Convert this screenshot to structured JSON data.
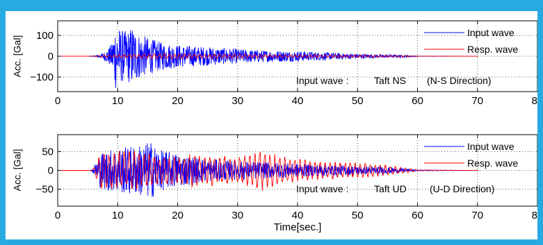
{
  "colors": {
    "border": "#29a9e1",
    "input_wave": "#0000ff",
    "resp_wave": "#ff0000"
  },
  "chart_data": [
    {
      "type": "line",
      "title": "",
      "xlabel": "",
      "ylabel": "Acc. [Gal]",
      "xlim": [
        0,
        80
      ],
      "ylim": [
        -170,
        170
      ],
      "xticks": [
        0,
        10,
        20,
        30,
        40,
        50,
        60,
        70,
        80
      ],
      "x_tick_labels": [
        "0",
        "10",
        "20",
        "30",
        "40",
        "50",
        "60",
        "70",
        "80"
      ],
      "yticks": [
        -100,
        0,
        100
      ],
      "y_tick_labels": [
        "−100",
        "0",
        "100"
      ],
      "grid": true,
      "legend_position": "top-right",
      "annotation_prefix": "Input wave :",
      "annotation_name": "Taft NS",
      "annotation_dir": "(N-S Direction)",
      "x_end": 70,
      "series": [
        {
          "name": "Input wave",
          "color": "#0000ff",
          "envelope": [
            [
              0,
              0
            ],
            [
              5,
              0
            ],
            [
              6,
              3
            ],
            [
              7,
              8
            ],
            [
              8,
              25
            ],
            [
              9,
              60
            ],
            [
              9.6,
              165
            ],
            [
              10.5,
              130
            ],
            [
              11.5,
              120
            ],
            [
              12.5,
              150
            ],
            [
              13.5,
              110
            ],
            [
              15,
              90
            ],
            [
              17,
              70
            ],
            [
              20,
              55
            ],
            [
              25,
              45
            ],
            [
              30,
              35
            ],
            [
              35,
              28
            ],
            [
              40,
              25
            ],
            [
              45,
              18
            ],
            [
              50,
              12
            ],
            [
              55,
              8
            ],
            [
              58,
              6
            ],
            [
              60,
              1
            ],
            [
              70,
              0
            ]
          ]
        },
        {
          "name": "Resp. wave",
          "color": "#ff0000",
          "envelope": [
            [
              0,
              0
            ],
            [
              5,
              0
            ],
            [
              6,
              2
            ],
            [
              8,
              5
            ],
            [
              10,
              9
            ],
            [
              15,
              13
            ],
            [
              20,
              14
            ],
            [
              25,
              12
            ],
            [
              30,
              11
            ],
            [
              35,
              10
            ],
            [
              40,
              9
            ],
            [
              45,
              8
            ],
            [
              50,
              7
            ],
            [
              55,
              5
            ],
            [
              58,
              4
            ],
            [
              60,
              1
            ],
            [
              70,
              0
            ]
          ]
        }
      ]
    },
    {
      "type": "line",
      "title": "",
      "xlabel": "Time[sec.]",
      "ylabel": "Acc. [Gal]",
      "xlim": [
        0,
        80
      ],
      "ylim": [
        -95,
        95
      ],
      "xticks": [
        0,
        10,
        20,
        30,
        40,
        50,
        60,
        70,
        80
      ],
      "x_tick_labels": [
        "0",
        "10",
        "20",
        "30",
        "40",
        "50",
        "60",
        "70",
        "80"
      ],
      "yticks": [
        -50,
        0,
        50
      ],
      "y_tick_labels": [
        "−50",
        "0",
        "50"
      ],
      "grid": true,
      "legend_position": "top-right",
      "annotation_prefix": "Input wave :",
      "annotation_name": "Taft UD",
      "annotation_dir": "(U-D Direction)",
      "x_end": 70,
      "series": [
        {
          "name": "Input wave",
          "color": "#0000ff",
          "envelope": [
            [
              0,
              0
            ],
            [
              5.5,
              0
            ],
            [
              6,
              10
            ],
            [
              7,
              45
            ],
            [
              8,
              55
            ],
            [
              10,
              60
            ],
            [
              12,
              65
            ],
            [
              14,
              70
            ],
            [
              15.5,
              78
            ],
            [
              17,
              55
            ],
            [
              20,
              45
            ],
            [
              25,
              30
            ],
            [
              30,
              25
            ],
            [
              35,
              22
            ],
            [
              40,
              18
            ],
            [
              45,
              15
            ],
            [
              50,
              12
            ],
            [
              55,
              9
            ],
            [
              58,
              5
            ],
            [
              60,
              1
            ],
            [
              70,
              0
            ]
          ]
        },
        {
          "name": "Resp. wave",
          "color": "#ff0000",
          "envelope": [
            [
              0,
              0
            ],
            [
              5.5,
              0
            ],
            [
              6,
              8
            ],
            [
              7,
              60
            ],
            [
              8,
              58
            ],
            [
              10,
              55
            ],
            [
              12,
              60
            ],
            [
              14,
              50
            ],
            [
              16,
              45
            ],
            [
              20,
              40
            ],
            [
              22,
              48
            ],
            [
              25,
              50
            ],
            [
              28,
              45
            ],
            [
              30,
              40
            ],
            [
              33,
              60
            ],
            [
              34.5,
              60
            ],
            [
              36,
              50
            ],
            [
              40,
              35
            ],
            [
              45,
              25
            ],
            [
              50,
              22
            ],
            [
              55,
              15
            ],
            [
              58,
              8
            ],
            [
              60,
              2
            ],
            [
              70,
              0
            ]
          ]
        }
      ]
    }
  ]
}
